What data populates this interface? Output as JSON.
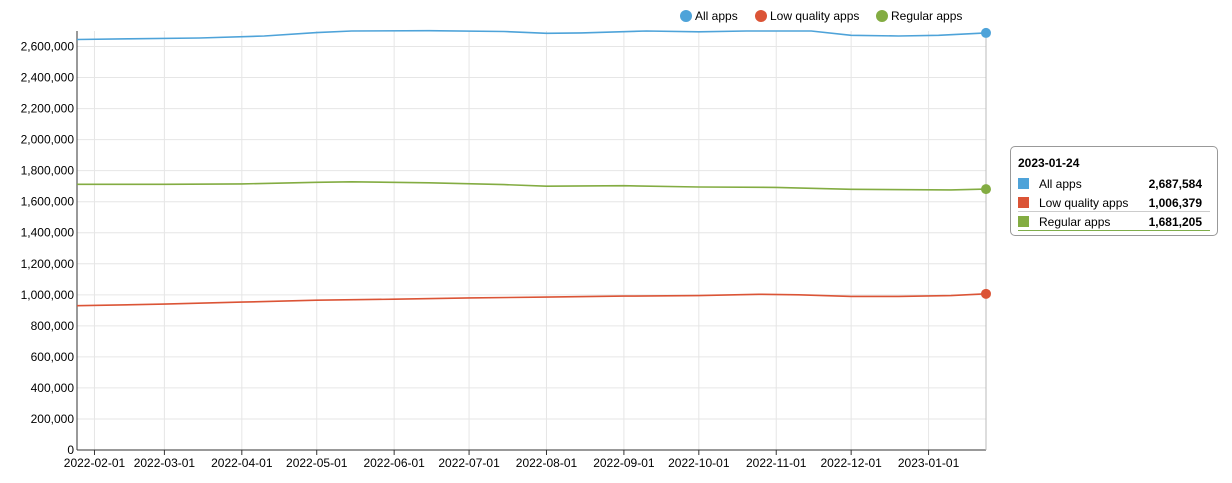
{
  "chart_data": {
    "type": "line",
    "x_start": "2022-01-25",
    "x_end": "2023-01-24",
    "x_tick_labels": [
      "2022-02-01",
      "2022-03-01",
      "2022-04-01",
      "2022-05-01",
      "2022-06-01",
      "2022-07-01",
      "2022-08-01",
      "2022-09-01",
      "2022-10-01",
      "2022-11-01",
      "2022-12-01",
      "2023-01-01"
    ],
    "y_tick_labels": [
      "0",
      "200,000",
      "400,000",
      "600,000",
      "800,000",
      "1,000,000",
      "1,200,000",
      "1,400,000",
      "1,600,000",
      "1,800,000",
      "2,000,000",
      "2,200,000",
      "2,400,000",
      "2,600,000"
    ],
    "ylim": [
      0,
      2700000
    ],
    "grid": true,
    "legend_position": "top-right",
    "series": [
      {
        "name": "All apps",
        "color": "#4ea3d9",
        "points": [
          [
            "2022-01-25",
            2645000
          ],
          [
            "2022-02-15",
            2650000
          ],
          [
            "2022-03-15",
            2655000
          ],
          [
            "2022-04-10",
            2668000
          ],
          [
            "2022-05-01",
            2690000
          ],
          [
            "2022-05-15",
            2700000
          ],
          [
            "2022-06-15",
            2702000
          ],
          [
            "2022-07-15",
            2697000
          ],
          [
            "2022-08-01",
            2685000
          ],
          [
            "2022-08-15",
            2688000
          ],
          [
            "2022-09-10",
            2700000
          ],
          [
            "2022-10-01",
            2695000
          ],
          [
            "2022-10-20",
            2700000
          ],
          [
            "2022-11-15",
            2700000
          ],
          [
            "2022-12-01",
            2672000
          ],
          [
            "2022-12-20",
            2668000
          ],
          [
            "2023-01-05",
            2672000
          ],
          [
            "2023-01-24",
            2687584
          ]
        ]
      },
      {
        "name": "Low quality apps",
        "color": "#db5436",
        "points": [
          [
            "2022-01-25",
            930000
          ],
          [
            "2022-03-01",
            940000
          ],
          [
            "2022-04-01",
            953000
          ],
          [
            "2022-05-01",
            965000
          ],
          [
            "2022-06-01",
            972000
          ],
          [
            "2022-07-01",
            980000
          ],
          [
            "2022-08-01",
            985000
          ],
          [
            "2022-09-01",
            992000
          ],
          [
            "2022-10-01",
            995000
          ],
          [
            "2022-10-25",
            1003000
          ],
          [
            "2022-11-10",
            1000000
          ],
          [
            "2022-12-01",
            990000
          ],
          [
            "2022-12-20",
            990000
          ],
          [
            "2023-01-10",
            995000
          ],
          [
            "2023-01-24",
            1006379
          ]
        ]
      },
      {
        "name": "Regular apps",
        "color": "#83ac42",
        "points": [
          [
            "2022-01-25",
            1712000
          ],
          [
            "2022-03-01",
            1712000
          ],
          [
            "2022-04-01",
            1715000
          ],
          [
            "2022-05-01",
            1725000
          ],
          [
            "2022-05-15",
            1728000
          ],
          [
            "2022-06-15",
            1722000
          ],
          [
            "2022-07-15",
            1710000
          ],
          [
            "2022-08-01",
            1700000
          ],
          [
            "2022-09-01",
            1703000
          ],
          [
            "2022-10-01",
            1695000
          ],
          [
            "2022-11-01",
            1692000
          ],
          [
            "2022-12-01",
            1680000
          ],
          [
            "2023-01-10",
            1676000
          ],
          [
            "2023-01-24",
            1681205
          ]
        ]
      }
    ],
    "tooltip": {
      "date": "2023-01-24",
      "rows": [
        {
          "label": "All apps",
          "value": "2,687,584",
          "color": "#4ea3d9"
        },
        {
          "label": "Low quality apps",
          "value": "1,006,379",
          "color": "#db5436"
        },
        {
          "label": "Regular apps",
          "value": "1,681,205",
          "color": "#83ac42"
        }
      ]
    }
  }
}
